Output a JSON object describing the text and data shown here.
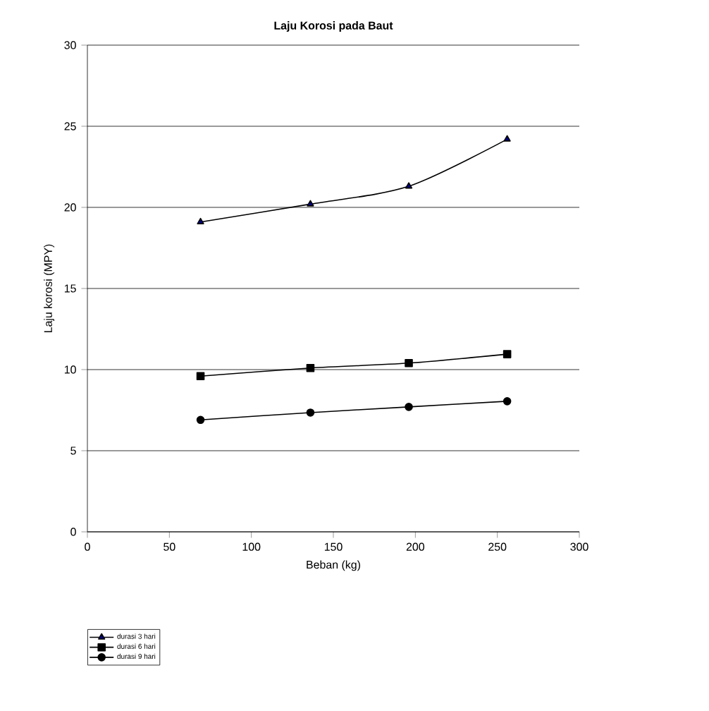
{
  "chart_data": {
    "type": "line",
    "title": "Laju Korosi pada Baut",
    "xlabel": "Beban (kg)",
    "ylabel": "Laju korosi (MPY)",
    "xlim": [
      0,
      300
    ],
    "xticks": [
      0,
      50,
      100,
      150,
      200,
      250,
      300
    ],
    "ylim": [
      0,
      30
    ],
    "yticks": [
      0,
      5,
      10,
      15,
      20,
      25,
      30
    ],
    "grid": "y",
    "legend": "bottom left",
    "series": [
      {
        "name": "durasi 3 hari",
        "color": "#000000",
        "marker": "triangle",
        "x": [
          69,
          136,
          196,
          256
        ],
        "values": [
          19.1,
          20.2,
          21.3,
          24.2
        ]
      },
      {
        "name": "durasi 6 hari",
        "color": "#000000",
        "marker": "square",
        "x": [
          69,
          136,
          196,
          256
        ],
        "values": [
          9.6,
          10.1,
          10.4,
          10.95
        ]
      },
      {
        "name": "durasi 9 hari",
        "color": "#000000",
        "marker": "circle",
        "x": [
          69,
          136,
          196,
          256
        ],
        "values": [
          6.9,
          7.35,
          7.7,
          8.05
        ]
      }
    ]
  }
}
